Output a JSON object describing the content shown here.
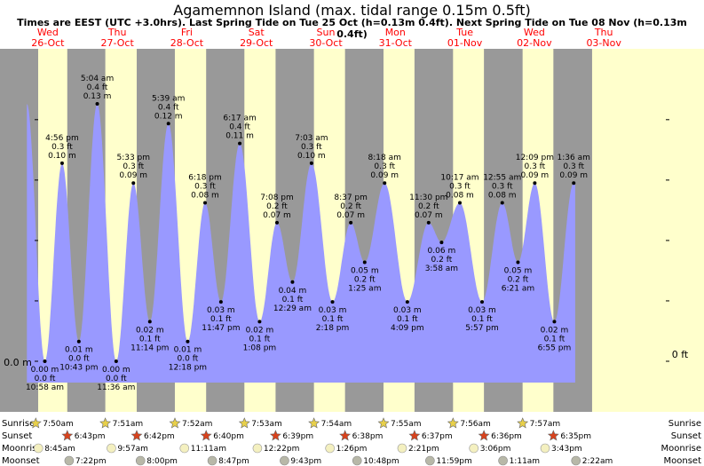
{
  "title": "Agamemnon Island (max. tidal range 0.15m 0.5ft)",
  "subtitle": "Times are EEST (UTC +3.0hrs). Last Spring Tide on Tue 25 Oct (h=0.13m 0.4ft). Next Spring Tide on Tue 08 Nov (h=0.13m 0.4ft)",
  "colors": {
    "day": "#ffffcc",
    "night": "#999999",
    "tide": "#9999ff",
    "header": "#ff0000",
    "below": "#bbbbbb"
  },
  "chart_data": {
    "type": "area",
    "x_unit": "hours since 00:00 Wed 26-Oct",
    "day_headers": [
      {
        "dow": "Wed",
        "date": "26-Oct"
      },
      {
        "dow": "Thu",
        "date": "27-Oct"
      },
      {
        "dow": "Fri",
        "date": "28-Oct"
      },
      {
        "dow": "Sat",
        "date": "29-Oct"
      },
      {
        "dow": "Sun",
        "date": "30-Oct"
      },
      {
        "dow": "Mon",
        "date": "31-Oct"
      },
      {
        "dow": "Tue",
        "date": "01-Nov"
      },
      {
        "dow": "Wed",
        "date": "02-Nov"
      },
      {
        "dow": "Thu",
        "date": "03-Nov"
      }
    ],
    "left_axis_label": "0.0 m",
    "right_axis_label": "0 ft",
    "ylim": [
      -0.03,
      0.17
    ],
    "tides": [
      {
        "h": 10.97,
        "label": [
          "0.00 m",
          "0.0 ft",
          "10:58 am"
        ],
        "v": 0.0,
        "type": "low"
      },
      {
        "h": 16.93,
        "label": [
          "4:56 pm",
          "0.3 ft",
          "0.10 m"
        ],
        "v": 0.1,
        "type": "high"
      },
      {
        "h": 22.72,
        "label": [
          "0.01 m",
          "0.0 ft",
          "10:43 pm"
        ],
        "v": 0.01,
        "type": "low"
      },
      {
        "h": 29.07,
        "label": [
          "5:04 am",
          "0.4 ft",
          "0.13 m"
        ],
        "v": 0.13,
        "type": "high"
      },
      {
        "h": 35.6,
        "label": [
          "0.00 m",
          "0.0 ft",
          "11:36 am"
        ],
        "v": 0.0,
        "type": "low"
      },
      {
        "h": 41.55,
        "label": [
          "5:33 pm",
          "0.3 ft",
          "0.09 m"
        ],
        "v": 0.09,
        "type": "high"
      },
      {
        "h": 47.23,
        "label": [
          "0.02 m",
          "0.1 ft",
          "11:14 pm"
        ],
        "v": 0.02,
        "type": "low"
      },
      {
        "h": 53.65,
        "label": [
          "5:39 am",
          "0.4 ft",
          "0.12 m"
        ],
        "v": 0.12,
        "type": "high"
      },
      {
        "h": 60.3,
        "label": [
          "0.01 m",
          "0.0 ft",
          "12:18 pm"
        ],
        "v": 0.01,
        "type": "low"
      },
      {
        "h": 66.3,
        "label": [
          "6:18 pm",
          "0.3 ft",
          "0.08 m"
        ],
        "v": 0.08,
        "type": "high"
      },
      {
        "h": 71.78,
        "label": [
          "0.03 m",
          "0.1 ft",
          "11:47 pm"
        ],
        "v": 0.03,
        "type": "low"
      },
      {
        "h": 78.28,
        "label": [
          "6:17 am",
          "0.4 ft",
          "0.11 m"
        ],
        "v": 0.11,
        "type": "high"
      },
      {
        "h": 85.13,
        "label": [
          "0.02 m",
          "0.1 ft",
          "1:08 pm"
        ],
        "v": 0.02,
        "type": "low"
      },
      {
        "h": 91.13,
        "label": [
          "7:08 pm",
          "0.2 ft",
          "0.07 m"
        ],
        "v": 0.07,
        "type": "high"
      },
      {
        "h": 96.48,
        "label": [
          "0.04 m",
          "0.1 ft",
          "12:29 am"
        ],
        "v": 0.04,
        "type": "low"
      },
      {
        "h": 103.05,
        "label": [
          "7:03 am",
          "0.3 ft",
          "0.10 m"
        ],
        "v": 0.1,
        "type": "high"
      },
      {
        "h": 110.3,
        "label": [
          "0.03 m",
          "0.1 ft",
          "2:18 pm"
        ],
        "v": 0.03,
        "type": "low"
      },
      {
        "h": 116.62,
        "label": [
          "8:37 pm",
          "0.2 ft",
          "0.07 m"
        ],
        "v": 0.07,
        "type": "high"
      },
      {
        "h": 121.42,
        "label": [
          "0.05 m",
          "0.2 ft",
          "1:25 am"
        ],
        "v": 0.05,
        "type": "low"
      },
      {
        "h": 128.3,
        "label": [
          "8:18 am",
          "0.3 ft",
          "0.09 m"
        ],
        "v": 0.09,
        "type": "high"
      },
      {
        "h": 136.15,
        "label": [
          "0.03 m",
          "0.1 ft",
          "4:09 pm"
        ],
        "v": 0.03,
        "type": "low"
      },
      {
        "h": 143.5,
        "label": [
          "11:30 pm",
          "0.2 ft",
          "0.07 m"
        ],
        "v": 0.07,
        "type": "high"
      },
      {
        "h": 147.97,
        "label": [
          "0.06 m",
          "0.2 ft",
          "3:58 am"
        ],
        "v": 0.06,
        "type": "low"
      },
      {
        "h": 154.28,
        "label": [
          "10:17 am",
          "0.3 ft",
          "0.08 m"
        ],
        "v": 0.08,
        "type": "high"
      },
      {
        "h": 161.95,
        "label": [
          "0.03 m",
          "0.1 ft",
          "5:57 pm"
        ],
        "v": 0.03,
        "type": "low"
      },
      {
        "h": 168.92,
        "label": [
          "12:55 am",
          "0.3 ft",
          "0.08 m"
        ],
        "v": 0.08,
        "type": "high"
      },
      {
        "h": 174.35,
        "label": [
          "0.05 m",
          "0.2 ft",
          "6:21 am"
        ],
        "v": 0.05,
        "type": "low"
      },
      {
        "h": 180.15,
        "label": [
          "12:09 pm",
          "0.3 ft",
          "0.09 m"
        ],
        "v": 0.09,
        "type": "high"
      },
      {
        "h": 186.92,
        "label": [
          "0.02 m",
          "0.1 ft",
          "6:55 pm"
        ],
        "v": 0.02,
        "type": "low"
      },
      {
        "h": 193.6,
        "label": [
          "1:36 am",
          "0.3 ft",
          "0.09 m"
        ],
        "v": 0.09,
        "type": "high"
      }
    ],
    "bottom_rows": [
      "Sunrise",
      "Sunset",
      "Moonrise",
      "Moonset"
    ],
    "sunrise": [
      {
        "h": 7.83,
        "t": "7:50am"
      },
      {
        "h": 31.85,
        "t": "7:51am"
      },
      {
        "h": 55.87,
        "t": "7:52am"
      },
      {
        "h": 79.88,
        "t": "7:53am"
      },
      {
        "h": 103.9,
        "t": "7:54am"
      },
      {
        "h": 127.92,
        "t": "7:55am"
      },
      {
        "h": 151.93,
        "t": "7:56am"
      },
      {
        "h": 175.95,
        "t": "7:57am"
      }
    ],
    "sunset": [
      {
        "h": 18.72,
        "t": "6:43pm"
      },
      {
        "h": 42.7,
        "t": "6:42pm"
      },
      {
        "h": 66.67,
        "t": "6:40pm"
      },
      {
        "h": 90.65,
        "t": "6:39pm"
      },
      {
        "h": 114.63,
        "t": "6:38pm"
      },
      {
        "h": 138.62,
        "t": "6:37pm"
      },
      {
        "h": 162.6,
        "t": "6:36pm"
      },
      {
        "h": 186.58,
        "t": "6:35pm"
      }
    ],
    "moonrise": [
      {
        "h": 8.75,
        "t": "8:45am"
      },
      {
        "h": 33.95,
        "t": "9:57am"
      },
      {
        "h": 59.18,
        "t": "11:11am"
      },
      {
        "h": 84.37,
        "t": "12:22pm"
      },
      {
        "h": 109.43,
        "t": "1:26pm"
      },
      {
        "h": 134.35,
        "t": "2:21pm"
      },
      {
        "h": 159.1,
        "t": "3:06pm"
      },
      {
        "h": 183.72,
        "t": "3:43pm"
      }
    ],
    "moonset": [
      {
        "h": 19.37,
        "t": "7:22pm"
      },
      {
        "h": 44.0,
        "t": "8:00pm"
      },
      {
        "h": 68.78,
        "t": "8:47pm"
      },
      {
        "h": 93.72,
        "t": "9:43pm"
      },
      {
        "h": 118.8,
        "t": "10:48pm"
      },
      {
        "h": 143.98,
        "t": "11:59pm"
      },
      {
        "h": 169.18,
        "t": "1:11am"
      },
      {
        "h": 194.37,
        "t": "2:22am"
      }
    ]
  }
}
